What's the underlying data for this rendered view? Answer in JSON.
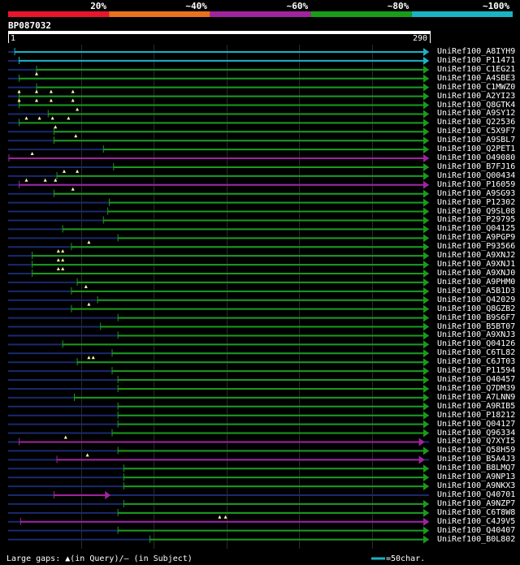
{
  "header": {
    "colorbar": [
      {
        "label": "20%",
        "color": "#e8162c"
      },
      {
        "label": "~40%",
        "color": "#e8731e"
      },
      {
        "label": "~60%",
        "color": "#a0249e"
      },
      {
        "label": "~80%",
        "color": "#1a9b1a"
      },
      {
        "label": "~100%",
        "color": "#1ab3c3"
      }
    ],
    "query_id": "BP087032",
    "start": "1",
    "end": "290"
  },
  "hits": [
    {
      "name": "UniRef100_A8IYH9",
      "color": "#1ab3c3",
      "from": 5,
      "to": 290,
      "gaps": []
    },
    {
      "name": "UniRef100_P11471",
      "color": "#1ab3c3",
      "from": 8,
      "to": 290,
      "gaps": []
    },
    {
      "name": "UniRef100_C1EG21",
      "color": "#1a9b1a",
      "from": 20,
      "to": 290,
      "gaps": []
    },
    {
      "name": "UniRef100_A4SBE3",
      "color": "#1a9b1a",
      "from": 8,
      "to": 290,
      "gaps": [
        20
      ]
    },
    {
      "name": "UniRef100_C1MWZ0",
      "color": "#1a9b1a",
      "from": 20,
      "to": 290,
      "gaps": []
    },
    {
      "name": "UniRef100_A2YI23",
      "color": "#1a9b1a",
      "from": 8,
      "to": 290,
      "gaps": [
        8,
        20,
        30,
        45
      ]
    },
    {
      "name": "UniRef100_Q8GTK4",
      "color": "#1a9b1a",
      "from": 8,
      "to": 290,
      "gaps": [
        8,
        20,
        30,
        45
      ]
    },
    {
      "name": "UniRef100_A9SY12",
      "color": "#1a9b1a",
      "from": 28,
      "to": 290,
      "gaps": [
        48
      ]
    },
    {
      "name": "UniRef100_Q22536",
      "color": "#1a9b1a",
      "from": 8,
      "to": 290,
      "gaps": [
        13,
        22,
        31,
        42
      ]
    },
    {
      "name": "UniRef100_C5X9F7",
      "color": "#1a9b1a",
      "from": 32,
      "to": 290,
      "gaps": [
        33
      ]
    },
    {
      "name": "UniRef100_A9SBL7",
      "color": "#1a9b1a",
      "from": 32,
      "to": 290,
      "gaps": [
        47
      ]
    },
    {
      "name": "UniRef100_Q2PET1",
      "color": "#1a9b1a",
      "from": 66,
      "to": 290,
      "gaps": []
    },
    {
      "name": "UniRef100_O49080",
      "color": "#a0249e",
      "from": 1,
      "to": 290,
      "gaps": [
        17
      ]
    },
    {
      "name": "UniRef100_B7FJ16",
      "color": "#1a9b1a",
      "from": 73,
      "to": 290,
      "gaps": []
    },
    {
      "name": "UniRef100_Q00434",
      "color": "#1a9b1a",
      "from": 34,
      "to": 290,
      "gaps": [
        39,
        48
      ]
    },
    {
      "name": "UniRef100_P16059",
      "color": "#a0249e",
      "from": 8,
      "to": 290,
      "gaps": [
        13,
        26,
        33
      ]
    },
    {
      "name": "UniRef100_A9SG93",
      "color": "#1a9b1a",
      "from": 32,
      "to": 290,
      "gaps": [
        45
      ]
    },
    {
      "name": "UniRef100_P12302",
      "color": "#1a9b1a",
      "from": 70,
      "to": 290,
      "gaps": []
    },
    {
      "name": "UniRef100_Q9SL08",
      "color": "#1a9b1a",
      "from": 69,
      "to": 290,
      "gaps": []
    },
    {
      "name": "UniRef100_P29795",
      "color": "#1a9b1a",
      "from": 66,
      "to": 290,
      "gaps": []
    },
    {
      "name": "UniRef100_Q04125",
      "color": "#1a9b1a",
      "from": 38,
      "to": 290,
      "gaps": []
    },
    {
      "name": "UniRef100_A9PGP9",
      "color": "#1a9b1a",
      "from": 76,
      "to": 290,
      "gaps": []
    },
    {
      "name": "UniRef100_P93566",
      "color": "#1a9b1a",
      "from": 44,
      "to": 290,
      "gaps": [
        56
      ]
    },
    {
      "name": "UniRef100_A9XNJ2",
      "color": "#1a9b1a",
      "from": 17,
      "to": 290,
      "gaps": [
        35,
        38
      ]
    },
    {
      "name": "UniRef100_A9XNJ1",
      "color": "#1a9b1a",
      "from": 17,
      "to": 290,
      "gaps": [
        35,
        38
      ]
    },
    {
      "name": "UniRef100_A9XNJ0",
      "color": "#1a9b1a",
      "from": 17,
      "to": 290,
      "gaps": [
        35,
        38
      ]
    },
    {
      "name": "UniRef100_A9PHM0",
      "color": "#1a9b1a",
      "from": 48,
      "to": 290,
      "gaps": []
    },
    {
      "name": "UniRef100_A5B1D3",
      "color": "#1a9b1a",
      "from": 44,
      "to": 290,
      "gaps": [
        54
      ]
    },
    {
      "name": "UniRef100_Q42029",
      "color": "#1a9b1a",
      "from": 62,
      "to": 290,
      "gaps": []
    },
    {
      "name": "UniRef100_Q8GZB2",
      "color": "#1a9b1a",
      "from": 44,
      "to": 290,
      "gaps": [
        56
      ]
    },
    {
      "name": "UniRef100_B9S6F7",
      "color": "#1a9b1a",
      "from": 76,
      "to": 290,
      "gaps": []
    },
    {
      "name": "UniRef100_B5BT07",
      "color": "#1a9b1a",
      "from": 64,
      "to": 290,
      "gaps": []
    },
    {
      "name": "UniRef100_A9XNJ3",
      "color": "#1a9b1a",
      "from": 76,
      "to": 290,
      "gaps": []
    },
    {
      "name": "UniRef100_Q04126",
      "color": "#1a9b1a",
      "from": 38,
      "to": 290,
      "gaps": []
    },
    {
      "name": "UniRef100_C6TL82",
      "color": "#1a9b1a",
      "from": 72,
      "to": 290,
      "gaps": []
    },
    {
      "name": "UniRef100_C6JT03",
      "color": "#1a9b1a",
      "from": 48,
      "to": 290,
      "gaps": [
        56,
        59
      ]
    },
    {
      "name": "UniRef100_P11594",
      "color": "#1a9b1a",
      "from": 72,
      "to": 290,
      "gaps": []
    },
    {
      "name": "UniRef100_Q40457",
      "color": "#1a9b1a",
      "from": 76,
      "to": 290,
      "gaps": []
    },
    {
      "name": "UniRef100_Q7DM39",
      "color": "#1a9b1a",
      "from": 76,
      "to": 290,
      "gaps": []
    },
    {
      "name": "UniRef100_A7LNN9",
      "color": "#1a9b1a",
      "from": 46,
      "to": 290,
      "gaps": []
    },
    {
      "name": "UniRef100_A9RIB5",
      "color": "#1a9b1a",
      "from": 76,
      "to": 290,
      "gaps": []
    },
    {
      "name": "UniRef100_P18212",
      "color": "#1a9b1a",
      "from": 76,
      "to": 290,
      "gaps": []
    },
    {
      "name": "UniRef100_Q04127",
      "color": "#1a9b1a",
      "from": 76,
      "to": 290,
      "gaps": []
    },
    {
      "name": "UniRef100_Q96334",
      "color": "#1a9b1a",
      "from": 72,
      "to": 290,
      "gaps": []
    },
    {
      "name": "UniRef100_Q7XYI5",
      "color": "#a0249e",
      "from": 8,
      "to": 287,
      "gaps": [
        40
      ]
    },
    {
      "name": "UniRef100_Q58H59",
      "color": "#1a9b1a",
      "from": 76,
      "to": 290,
      "gaps": []
    },
    {
      "name": "UniRef100_B5A4J3",
      "color": "#a0249e",
      "from": 34,
      "to": 287,
      "gaps": [
        55
      ]
    },
    {
      "name": "UniRef100_B8LMQ7",
      "color": "#1a9b1a",
      "from": 80,
      "to": 290,
      "gaps": []
    },
    {
      "name": "UniRef100_A9NP13",
      "color": "#1a9b1a",
      "from": 80,
      "to": 290,
      "gaps": []
    },
    {
      "name": "UniRef100_A9NKX3",
      "color": "#1a9b1a",
      "from": 80,
      "to": 290,
      "gaps": []
    },
    {
      "name": "UniRef100_Q40701",
      "color": "#a0249e",
      "from": 32,
      "to": 71,
      "gaps": []
    },
    {
      "name": "UniRef100_A9NZP7",
      "color": "#1a9b1a",
      "from": 80,
      "to": 290,
      "gaps": []
    },
    {
      "name": "UniRef100_C6T8W8",
      "color": "#1a9b1a",
      "from": 76,
      "to": 290,
      "gaps": []
    },
    {
      "name": "UniRef100_C4J9V5",
      "color": "#a0249e",
      "from": 9,
      "to": 290,
      "gaps": [
        146,
        150
      ]
    },
    {
      "name": "UniRef100_Q40407",
      "color": "#1a9b1a",
      "from": 76,
      "to": 290,
      "gaps": []
    },
    {
      "name": "UniRef100_B0L802",
      "color": "#1a9b1a",
      "from": 98,
      "to": 290,
      "gaps": []
    }
  ],
  "footer": {
    "legend": "Large gaps: ▲(in Query)/— (in Subject)",
    "scale_label": "=50char."
  }
}
